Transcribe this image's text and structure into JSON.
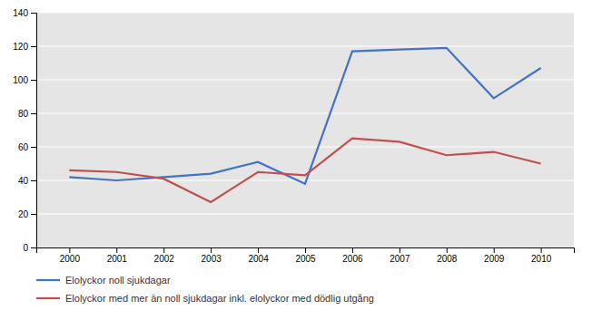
{
  "chart_data": {
    "type": "line",
    "x": [
      2000,
      2001,
      2002,
      2003,
      2004,
      2005,
      2006,
      2007,
      2008,
      2009,
      2010
    ],
    "series": [
      {
        "name": "Elolyckor noll sjukdagar",
        "color": "#4472C4",
        "values": [
          42,
          40,
          42,
          44,
          51,
          38,
          117,
          118,
          119,
          89,
          107
        ]
      },
      {
        "name": "Elolyckor med mer än noll sjukdagar inkl. elolyckor med dödlig utgång",
        "color": "#C0504D",
        "values": [
          46,
          45,
          41,
          27,
          45,
          43,
          65,
          63,
          55,
          57,
          50
        ]
      }
    ],
    "xlim": [
      1999.3,
      2010.7
    ],
    "xticks": [
      2000,
      2001,
      2002,
      2003,
      2004,
      2005,
      2006,
      2007,
      2008,
      2009,
      2010
    ],
    "ylim": [
      0,
      140
    ],
    "yticks": [
      0,
      20,
      40,
      60,
      80,
      100,
      120,
      140
    ],
    "grid": true,
    "legend": "bottom"
  }
}
